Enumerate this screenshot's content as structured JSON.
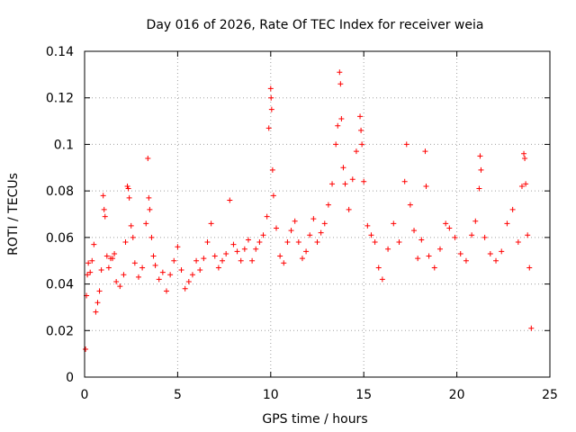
{
  "chart_data": {
    "type": "scatter",
    "title": "Day 016 of 2026, Rate Of TEC Index for receiver weia",
    "xlabel": "GPS time / hours",
    "ylabel": "ROTI / TECUs",
    "xlim": [
      0,
      25
    ],
    "ylim": [
      0,
      0.14
    ],
    "xticks": [
      "0",
      "5",
      "10",
      "15",
      "20",
      "25"
    ],
    "xtick_values": [
      0,
      5,
      10,
      15,
      20,
      25
    ],
    "yticks": [
      "0",
      "0.02",
      "0.04",
      "0.06",
      "0.08",
      "0.1",
      "0.12",
      "0.14"
    ],
    "ytick_values": [
      0,
      0.02,
      0.04,
      0.06,
      0.08,
      0.1,
      0.12,
      0.14
    ],
    "grid": true,
    "marker": "+",
    "color": "#ff0000",
    "series": [
      {
        "points": [
          [
            0.05,
            0.012
          ],
          [
            0.1,
            0.035
          ],
          [
            0.15,
            0.044
          ],
          [
            0.2,
            0.049
          ],
          [
            0.3,
            0.045
          ],
          [
            0.4,
            0.05
          ],
          [
            0.5,
            0.057
          ],
          [
            0.6,
            0.028
          ],
          [
            0.7,
            0.032
          ],
          [
            0.8,
            0.037
          ],
          [
            0.9,
            0.046
          ],
          [
            1.0,
            0.078
          ],
          [
            1.05,
            0.072
          ],
          [
            1.1,
            0.069
          ],
          [
            1.2,
            0.052
          ],
          [
            1.3,
            0.047
          ],
          [
            1.4,
            0.051
          ],
          [
            1.5,
            0.051
          ],
          [
            1.6,
            0.053
          ],
          [
            1.7,
            0.041
          ],
          [
            1.9,
            0.039
          ],
          [
            2.1,
            0.044
          ],
          [
            2.2,
            0.058
          ],
          [
            2.3,
            0.082
          ],
          [
            2.35,
            0.081
          ],
          [
            2.4,
            0.077
          ],
          [
            2.5,
            0.065
          ],
          [
            2.6,
            0.06
          ],
          [
            2.7,
            0.049
          ],
          [
            2.9,
            0.043
          ],
          [
            3.1,
            0.047
          ],
          [
            3.3,
            0.066
          ],
          [
            3.4,
            0.094
          ],
          [
            3.45,
            0.077
          ],
          [
            3.5,
            0.072
          ],
          [
            3.6,
            0.06
          ],
          [
            3.7,
            0.052
          ],
          [
            3.8,
            0.048
          ],
          [
            4.0,
            0.042
          ],
          [
            4.2,
            0.045
          ],
          [
            4.4,
            0.037
          ],
          [
            4.6,
            0.044
          ],
          [
            4.8,
            0.05
          ],
          [
            5.0,
            0.056
          ],
          [
            5.2,
            0.046
          ],
          [
            5.4,
            0.038
          ],
          [
            5.6,
            0.041
          ],
          [
            5.8,
            0.044
          ],
          [
            6.0,
            0.05
          ],
          [
            6.2,
            0.046
          ],
          [
            6.4,
            0.051
          ],
          [
            6.6,
            0.058
          ],
          [
            6.8,
            0.066
          ],
          [
            7.0,
            0.052
          ],
          [
            7.2,
            0.047
          ],
          [
            7.4,
            0.05
          ],
          [
            7.6,
            0.053
          ],
          [
            7.8,
            0.076
          ],
          [
            8.0,
            0.057
          ],
          [
            8.2,
            0.054
          ],
          [
            8.4,
            0.05
          ],
          [
            8.6,
            0.055
          ],
          [
            8.8,
            0.059
          ],
          [
            9.0,
            0.05
          ],
          [
            9.2,
            0.055
          ],
          [
            9.4,
            0.058
          ],
          [
            9.6,
            0.061
          ],
          [
            9.8,
            0.069
          ],
          [
            9.9,
            0.107
          ],
          [
            10.0,
            0.124
          ],
          [
            10.02,
            0.12
          ],
          [
            10.05,
            0.115
          ],
          [
            10.1,
            0.089
          ],
          [
            10.15,
            0.078
          ],
          [
            10.3,
            0.064
          ],
          [
            10.5,
            0.052
          ],
          [
            10.7,
            0.049
          ],
          [
            10.9,
            0.058
          ],
          [
            11.1,
            0.063
          ],
          [
            11.3,
            0.067
          ],
          [
            11.5,
            0.058
          ],
          [
            11.7,
            0.051
          ],
          [
            11.9,
            0.054
          ],
          [
            12.1,
            0.061
          ],
          [
            12.3,
            0.068
          ],
          [
            12.5,
            0.058
          ],
          [
            12.7,
            0.062
          ],
          [
            12.9,
            0.066
          ],
          [
            13.1,
            0.074
          ],
          [
            13.3,
            0.083
          ],
          [
            13.5,
            0.1
          ],
          [
            13.6,
            0.108
          ],
          [
            13.7,
            0.131
          ],
          [
            13.75,
            0.126
          ],
          [
            13.8,
            0.111
          ],
          [
            13.9,
            0.09
          ],
          [
            14.0,
            0.083
          ],
          [
            14.2,
            0.072
          ],
          [
            14.4,
            0.085
          ],
          [
            14.6,
            0.097
          ],
          [
            14.8,
            0.112
          ],
          [
            14.85,
            0.106
          ],
          [
            14.9,
            0.1
          ],
          [
            15.0,
            0.084
          ],
          [
            15.2,
            0.065
          ],
          [
            15.4,
            0.061
          ],
          [
            15.6,
            0.058
          ],
          [
            15.8,
            0.047
          ],
          [
            16.0,
            0.042
          ],
          [
            16.3,
            0.055
          ],
          [
            16.6,
            0.066
          ],
          [
            16.9,
            0.058
          ],
          [
            17.2,
            0.084
          ],
          [
            17.3,
            0.1
          ],
          [
            17.5,
            0.074
          ],
          [
            17.7,
            0.063
          ],
          [
            17.9,
            0.051
          ],
          [
            18.1,
            0.059
          ],
          [
            18.3,
            0.097
          ],
          [
            18.35,
            0.082
          ],
          [
            18.5,
            0.052
          ],
          [
            18.8,
            0.047
          ],
          [
            19.1,
            0.055
          ],
          [
            19.4,
            0.066
          ],
          [
            19.6,
            0.064
          ],
          [
            19.9,
            0.06
          ],
          [
            20.2,
            0.053
          ],
          [
            20.5,
            0.05
          ],
          [
            20.8,
            0.061
          ],
          [
            21.0,
            0.067
          ],
          [
            21.2,
            0.081
          ],
          [
            21.25,
            0.095
          ],
          [
            21.3,
            0.089
          ],
          [
            21.5,
            0.06
          ],
          [
            21.8,
            0.053
          ],
          [
            22.1,
            0.05
          ],
          [
            22.4,
            0.054
          ],
          [
            22.7,
            0.066
          ],
          [
            23.0,
            0.072
          ],
          [
            23.3,
            0.058
          ],
          [
            23.5,
            0.082
          ],
          [
            23.6,
            0.096
          ],
          [
            23.65,
            0.094
          ],
          [
            23.7,
            0.083
          ],
          [
            23.8,
            0.061
          ],
          [
            23.9,
            0.047
          ],
          [
            24.0,
            0.021
          ]
        ]
      }
    ]
  }
}
